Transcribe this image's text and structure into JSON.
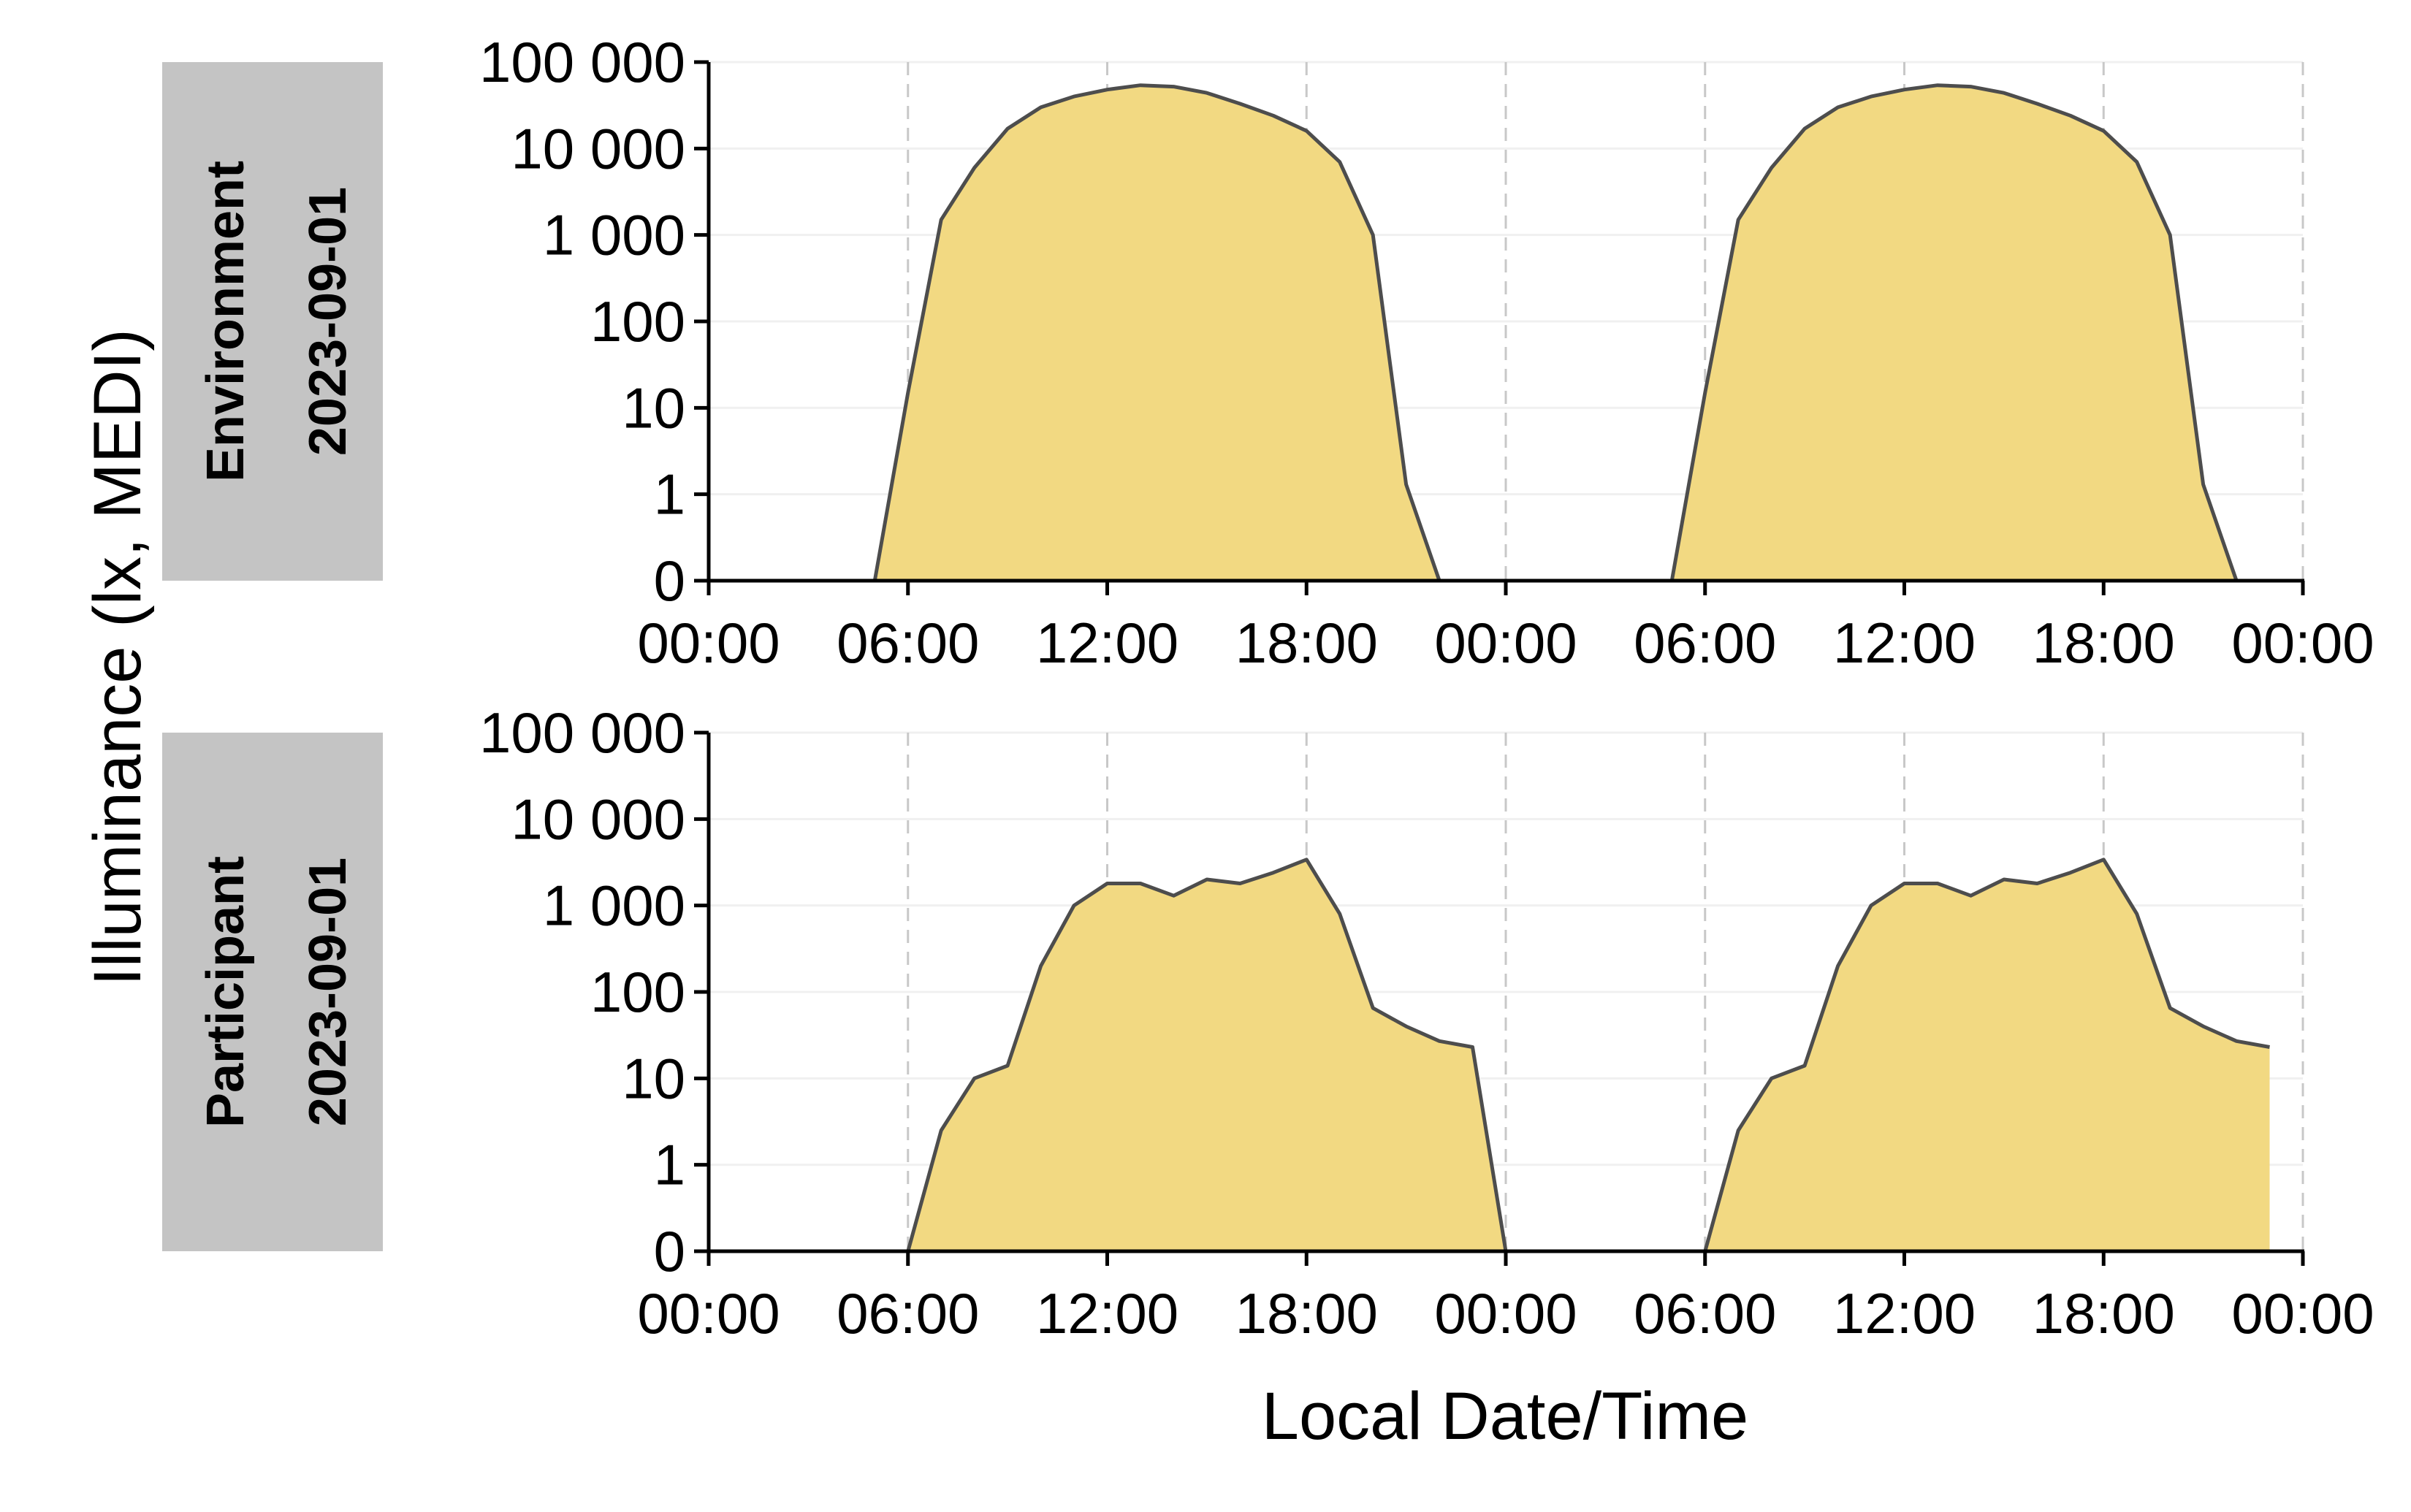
{
  "chart_data": [
    {
      "type": "area",
      "facet_label": "Environment",
      "facet_date": "2023-09-01",
      "x": [
        "00:00",
        "01:00",
        "02:00",
        "03:00",
        "04:00",
        "05:00",
        "06:00",
        "07:00",
        "08:00",
        "09:00",
        "10:00",
        "11:00",
        "12:00",
        "13:00",
        "14:00",
        "15:00",
        "16:00",
        "17:00",
        "18:00",
        "19:00",
        "20:00",
        "21:00",
        "22:00",
        "23:00",
        "00:00",
        "01:00",
        "02:00",
        "03:00",
        "04:00",
        "05:00",
        "06:00",
        "07:00",
        "08:00",
        "09:00",
        "10:00",
        "11:00",
        "12:00",
        "13:00",
        "14:00",
        "15:00",
        "16:00",
        "17:00",
        "18:00",
        "19:00",
        "20:00",
        "21:00",
        "22:00",
        "23:00"
      ],
      "values": [
        0,
        0,
        0,
        0,
        0,
        0,
        15,
        1500,
        6000,
        17000,
        30000,
        40000,
        48000,
        54000,
        52000,
        44000,
        33000,
        24000,
        16000,
        7000,
        1000,
        1.3,
        0,
        0,
        0,
        0,
        0,
        0,
        0,
        0,
        15,
        1500,
        6000,
        17000,
        30000,
        40000,
        48000,
        54000,
        52000,
        44000,
        33000,
        24000,
        16000,
        7000,
        1000,
        1.3,
        0,
        0
      ],
      "xticks": [
        "00:00",
        "06:00",
        "12:00",
        "18:00",
        "00:00",
        "06:00",
        "12:00",
        "18:00",
        "00:00"
      ],
      "yticks": [
        "0",
        "1",
        "10",
        "100",
        "1 000",
        "10 000",
        "100 000"
      ],
      "ylim": [
        0,
        100000
      ],
      "yscale": "symlog",
      "fill_color": "#f2d982",
      "line_color": "#4d4d4d",
      "grid": "horizontal faint, vertical dashed at 6-hour ticks"
    },
    {
      "type": "area",
      "facet_label": "Participant",
      "facet_date": "2023-09-01",
      "x": [
        "00:00",
        "01:00",
        "02:00",
        "03:00",
        "04:00",
        "05:00",
        "06:00",
        "07:00",
        "08:00",
        "09:00",
        "10:00",
        "11:00",
        "12:00",
        "13:00",
        "14:00",
        "15:00",
        "16:00",
        "17:00",
        "18:00",
        "19:00",
        "20:00",
        "21:00",
        "22:00",
        "23:00",
        "00:00",
        "01:00",
        "02:00",
        "03:00",
        "04:00",
        "05:00",
        "06:00",
        "07:00",
        "08:00",
        "09:00",
        "10:00",
        "11:00",
        "12:00",
        "13:00",
        "14:00",
        "15:00",
        "16:00",
        "17:00",
        "18:00",
        "19:00",
        "20:00",
        "21:00",
        "22:00",
        "23:00"
      ],
      "values": [
        0,
        0,
        0,
        0,
        0,
        0,
        0,
        2.5,
        10,
        14,
        200,
        1000,
        1800,
        1800,
        1300,
        2000,
        1800,
        2400,
        3400,
        800,
        65,
        40,
        27,
        23,
        0,
        0,
        0,
        0,
        0,
        0,
        0,
        2.5,
        10,
        14,
        200,
        1000,
        1800,
        1800,
        1300,
        2000,
        1800,
        2400,
        3400,
        800,
        65,
        40,
        27,
        23
      ],
      "xticks": [
        "00:00",
        "06:00",
        "12:00",
        "18:00",
        "00:00",
        "06:00",
        "12:00",
        "18:00",
        "00:00"
      ],
      "yticks": [
        "0",
        "1",
        "10",
        "100",
        "1 000",
        "10 000",
        "100 000"
      ],
      "ylim": [
        0,
        100000
      ],
      "yscale": "symlog",
      "fill_color": "#f2d982",
      "line_color": "#4d4d4d",
      "grid": "horizontal faint, vertical dashed at 6-hour ticks"
    }
  ],
  "ylabel": "Illuminance (lx, MEDI)",
  "xlabel": "Local Date/Time"
}
